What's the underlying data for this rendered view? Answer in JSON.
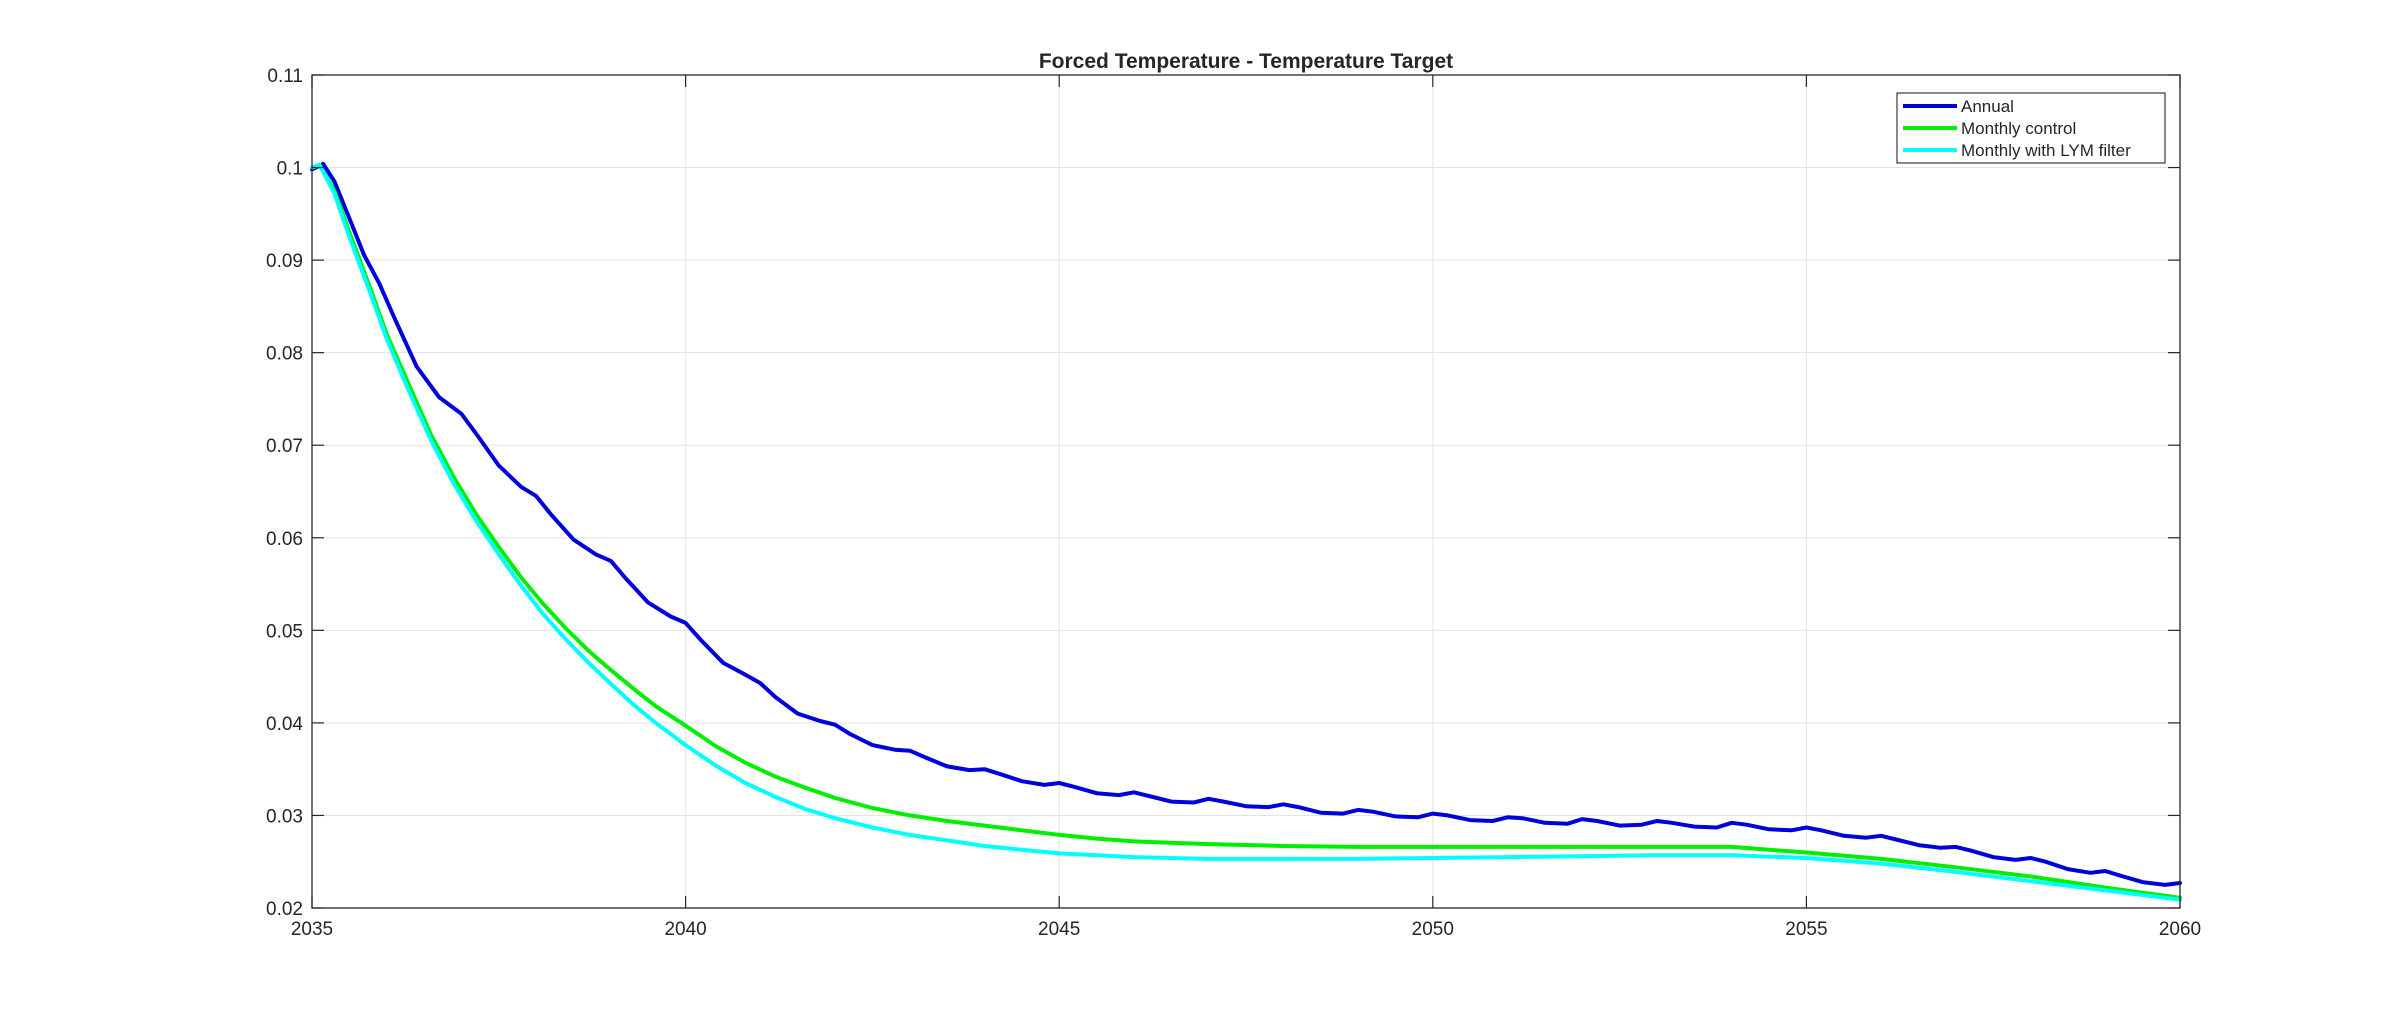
{
  "chart_data": {
    "type": "line",
    "title": "Forced Temperature - Temperature Target",
    "xlabel": "",
    "ylabel": "",
    "xlim": [
      2035,
      2060
    ],
    "ylim": [
      0.02,
      0.11
    ],
    "xticks": [
      "2035",
      "2040",
      "2045",
      "2050",
      "2055",
      "2060"
    ],
    "yticks": [
      "0.02",
      "0.03",
      "0.04",
      "0.05",
      "0.06",
      "0.07",
      "0.08",
      "0.09",
      "0.1",
      "0.11"
    ],
    "grid": true,
    "legend_position": "top-right",
    "series": [
      {
        "name": "Annual",
        "color": "#0000dd",
        "x": [
          2035,
          2035.15,
          2035.3,
          2035.5,
          2035.7,
          2035.9,
          2036.1,
          2036.4,
          2036.7,
          2037.0,
          2037.2,
          2037.5,
          2037.8,
          2038.0,
          2038.2,
          2038.5,
          2038.8,
          2039.0,
          2039.2,
          2039.5,
          2039.8,
          2040.0,
          2040.2,
          2040.5,
          2040.8,
          2041.0,
          2041.2,
          2041.5,
          2041.8,
          2042.0,
          2042.2,
          2042.5,
          2042.8,
          2043.0,
          2043.2,
          2043.5,
          2043.8,
          2044.0,
          2044.2,
          2044.5,
          2044.8,
          2045.0,
          2045.2,
          2045.5,
          2045.8,
          2046.0,
          2046.2,
          2046.5,
          2046.8,
          2047.0,
          2047.2,
          2047.5,
          2047.8,
          2048.0,
          2048.2,
          2048.5,
          2048.8,
          2049.0,
          2049.2,
          2049.5,
          2049.8,
          2050.0,
          2050.2,
          2050.5,
          2050.8,
          2051.0,
          2051.2,
          2051.5,
          2051.8,
          2052.0,
          2052.2,
          2052.5,
          2052.8,
          2053.0,
          2053.2,
          2053.5,
          2053.8,
          2054.0,
          2054.2,
          2054.5,
          2054.8,
          2055.0,
          2055.2,
          2055.5,
          2055.8,
          2056.0,
          2056.2,
          2056.5,
          2056.8,
          2057.0,
          2057.2,
          2057.5,
          2057.8,
          2058.0,
          2058.2,
          2058.5,
          2058.8,
          2059.0,
          2059.2,
          2059.5,
          2059.8,
          2060.0
        ],
        "values": [
          0.0998,
          0.1004,
          0.0985,
          0.0945,
          0.0905,
          0.0875,
          0.0838,
          0.0785,
          0.0752,
          0.0734,
          0.0712,
          0.0678,
          0.0655,
          0.0645,
          0.0625,
          0.0598,
          0.0582,
          0.0575,
          0.0556,
          0.053,
          0.0515,
          0.0508,
          0.049,
          0.0465,
          0.0452,
          0.0443,
          0.0428,
          0.041,
          0.0402,
          0.0398,
          0.0388,
          0.0376,
          0.0371,
          0.037,
          0.0363,
          0.0353,
          0.0349,
          0.035,
          0.0345,
          0.0337,
          0.0333,
          0.0335,
          0.0331,
          0.0324,
          0.0322,
          0.0325,
          0.0321,
          0.0315,
          0.0314,
          0.0318,
          0.0315,
          0.031,
          0.0309,
          0.0312,
          0.0309,
          0.0303,
          0.0302,
          0.0306,
          0.0304,
          0.0299,
          0.0298,
          0.0302,
          0.03,
          0.0295,
          0.0294,
          0.0298,
          0.0297,
          0.0292,
          0.0291,
          0.0296,
          0.0294,
          0.0289,
          0.029,
          0.0294,
          0.0292,
          0.0288,
          0.0287,
          0.0292,
          0.029,
          0.0285,
          0.0284,
          0.0287,
          0.0284,
          0.0278,
          0.0276,
          0.0278,
          0.0274,
          0.0268,
          0.0265,
          0.0266,
          0.0262,
          0.0255,
          0.0252,
          0.0254,
          0.025,
          0.0242,
          0.0238,
          0.024,
          0.0235,
          0.0228,
          0.0225,
          0.0227
        ]
      },
      {
        "name": "Monthly control",
        "color": "#00ee00",
        "x": [
          2035,
          2035.1,
          2035.3,
          2035.5,
          2035.8,
          2036.0,
          2036.3,
          2036.6,
          2036.9,
          2037.2,
          2037.5,
          2037.8,
          2038.1,
          2038.4,
          2038.7,
          2039.0,
          2039.3,
          2039.6,
          2040.0,
          2040.4,
          2040.8,
          2041.2,
          2041.6,
          2042.0,
          2042.5,
          2043.0,
          2043.5,
          2044.0,
          2044.5,
          2045.0,
          2045.5,
          2046.0,
          2047.0,
          2048.0,
          2049.0,
          2050.0,
          2051.0,
          2052.0,
          2053.0,
          2054.0,
          2055.0,
          2056.0,
          2057.0,
          2058.0,
          2059.0,
          2060.0
        ],
        "values": [
          0.1,
          0.1003,
          0.0975,
          0.093,
          0.0865,
          0.082,
          0.0765,
          0.071,
          0.0665,
          0.0625,
          0.059,
          0.0557,
          0.0528,
          0.0502,
          0.0478,
          0.0457,
          0.0437,
          0.0418,
          0.0397,
          0.0375,
          0.0357,
          0.0342,
          0.033,
          0.0319,
          0.0308,
          0.03,
          0.0294,
          0.0289,
          0.0284,
          0.0279,
          0.0275,
          0.0272,
          0.0269,
          0.0267,
          0.0266,
          0.0266,
          0.0266,
          0.0266,
          0.0266,
          0.0266,
          0.026,
          0.0253,
          0.0244,
          0.0234,
          0.0222,
          0.0211
        ]
      },
      {
        "name": "Monthly with LYM filter",
        "color": "#00ffff",
        "x": [
          2035,
          2035.1,
          2035.3,
          2035.5,
          2035.8,
          2036.0,
          2036.3,
          2036.6,
          2036.9,
          2037.2,
          2037.5,
          2037.8,
          2038.1,
          2038.4,
          2038.7,
          2039.0,
          2039.3,
          2039.6,
          2040.0,
          2040.4,
          2040.8,
          2041.2,
          2041.6,
          2042.0,
          2042.5,
          2043.0,
          2043.5,
          2044.0,
          2044.5,
          2045.0,
          2045.5,
          2046.0,
          2047.0,
          2048.0,
          2049.0,
          2050.0,
          2051.0,
          2052.0,
          2053.0,
          2054.0,
          2055.0,
          2056.0,
          2057.0,
          2058.0,
          2059.0,
          2060.0
        ],
        "values": [
          0.1,
          0.1003,
          0.0972,
          0.0925,
          0.086,
          0.0815,
          0.0758,
          0.0704,
          0.0658,
          0.0618,
          0.0582,
          0.0548,
          0.0517,
          0.049,
          0.0465,
          0.0442,
          0.042,
          0.04,
          0.0376,
          0.0354,
          0.0335,
          0.032,
          0.0307,
          0.0297,
          0.0287,
          0.0279,
          0.0273,
          0.0267,
          0.0263,
          0.0259,
          0.0257,
          0.0255,
          0.0253,
          0.0253,
          0.0253,
          0.0254,
          0.0255,
          0.0256,
          0.0257,
          0.0257,
          0.0254,
          0.0248,
          0.0239,
          0.0229,
          0.0219,
          0.0209
        ]
      }
    ]
  }
}
